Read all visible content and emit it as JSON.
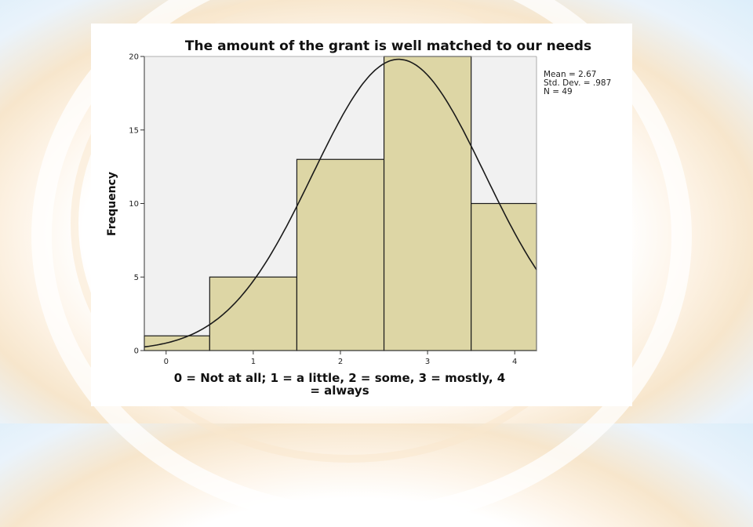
{
  "chart_data": {
    "type": "bar",
    "title": "The amount of the grant is well matched to our needs",
    "ylabel": "Frequency",
    "xlabel_lines": [
      "0 = Not at all; 1 = a little, 2 = some, 3 = mostly, 4",
      "= always"
    ],
    "categories": [
      "0",
      "1",
      "2",
      "3",
      "4"
    ],
    "values": [
      1,
      5,
      13,
      20,
      10
    ],
    "xlim": [
      -0.25,
      4.25
    ],
    "ylim": [
      0,
      20
    ],
    "yticks": [
      0,
      5,
      10,
      15,
      20
    ],
    "normal_curve": {
      "mean": 2.67,
      "std": 0.987,
      "n": 49
    },
    "stats": [
      "Mean = 2.67",
      "Std. Dev. = .987",
      "N = 49"
    ],
    "colors": {
      "bar_fill": "#ddd6a5",
      "bar_stroke": "#1a1a1a",
      "plot_bg": "#f1f1f1",
      "curve": "#1a1a1a"
    }
  }
}
